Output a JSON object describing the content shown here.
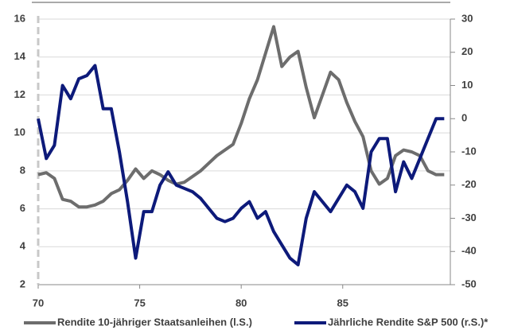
{
  "chart_data": {
    "type": "line",
    "x": [
      70.0,
      70.4,
      70.8,
      71.2,
      71.6,
      72.0,
      72.4,
      72.8,
      73.2,
      73.6,
      74.0,
      74.4,
      74.8,
      75.2,
      75.6,
      76.0,
      76.4,
      76.8,
      77.2,
      77.6,
      78.0,
      78.4,
      78.8,
      79.2,
      79.6,
      80.0,
      80.4,
      80.8,
      81.2,
      81.6,
      82.0,
      82.4,
      82.8,
      83.2,
      83.6,
      84.0,
      84.4,
      84.8,
      85.2,
      85.6,
      86.0,
      86.4,
      86.8,
      87.2,
      87.6,
      88.0,
      88.4,
      88.8,
      89.2,
      89.6,
      90.0
    ],
    "series": [
      {
        "name": "Rendite 10-jähriger Staatsanleihen (l.S.)",
        "color": "#6d6d6d",
        "axis": "y",
        "values": [
          7.8,
          7.9,
          7.6,
          6.5,
          6.4,
          6.1,
          6.1,
          6.2,
          6.4,
          6.8,
          7.0,
          7.5,
          8.1,
          7.6,
          8.0,
          7.8,
          7.5,
          7.3,
          7.4,
          7.7,
          8.0,
          8.4,
          8.8,
          9.1,
          9.4,
          10.5,
          11.8,
          12.8,
          14.2,
          15.6,
          13.5,
          14.0,
          14.3,
          12.4,
          10.8,
          12.0,
          13.2,
          12.8,
          11.6,
          10.6,
          9.8,
          8.0,
          7.3,
          7.6,
          8.8,
          9.1,
          9.0,
          8.8,
          8.0,
          7.8,
          7.8
        ]
      },
      {
        "name": "Jährliche Rendite S&P 500 (r.S.)*",
        "color": "#0d1a7a",
        "axis": "y2",
        "values": [
          0,
          -12,
          -8,
          10,
          6,
          12,
          13,
          16,
          3,
          3,
          -10,
          -25,
          -42,
          -28,
          -28,
          -20,
          -16,
          -20,
          -21,
          -22,
          -24,
          -27,
          -30,
          -31,
          -30,
          -27,
          -25,
          -30,
          -28,
          -34,
          -38,
          -42,
          -44,
          -30,
          -22,
          -25,
          -28,
          -24,
          -20,
          -22,
          -27,
          -10,
          -6,
          -6,
          -22,
          -13,
          -18,
          -12,
          -6,
          0,
          0
        ]
      }
    ],
    "xlim": [
      70,
      90.3
    ],
    "xticks": [
      70,
      75,
      80,
      85
    ],
    "ylim": [
      2,
      16
    ],
    "yticks": [
      2,
      4,
      6,
      8,
      10,
      12,
      14,
      16
    ],
    "y2lim": [
      -50,
      30
    ],
    "y2ticks": [
      -50,
      -40,
      -30,
      -20,
      -10,
      0,
      10,
      20,
      30
    ],
    "grid": true
  }
}
